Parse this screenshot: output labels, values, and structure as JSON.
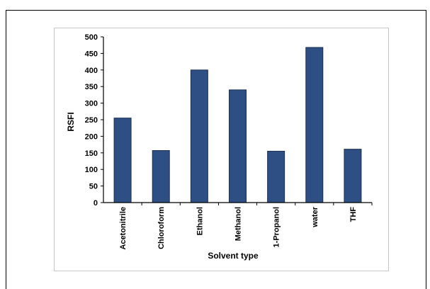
{
  "chart_data": {
    "type": "bar",
    "categories": [
      "Acetonitrile",
      "Chloroform",
      "Ethanol",
      "Methanol",
      "1-Propanol",
      "water",
      "THF"
    ],
    "values": [
      255,
      157,
      400,
      340,
      155,
      468,
      161
    ],
    "xlabel": "Solvent type",
    "ylabel": "RSFI",
    "ylim": [
      0,
      500
    ],
    "yticks": [
      0,
      50,
      100,
      150,
      200,
      250,
      300,
      350,
      400,
      450,
      500
    ],
    "bar_color": "#2e4f83",
    "bar_edge_color": "#1a2f52",
    "grid": false,
    "legend": false
  }
}
